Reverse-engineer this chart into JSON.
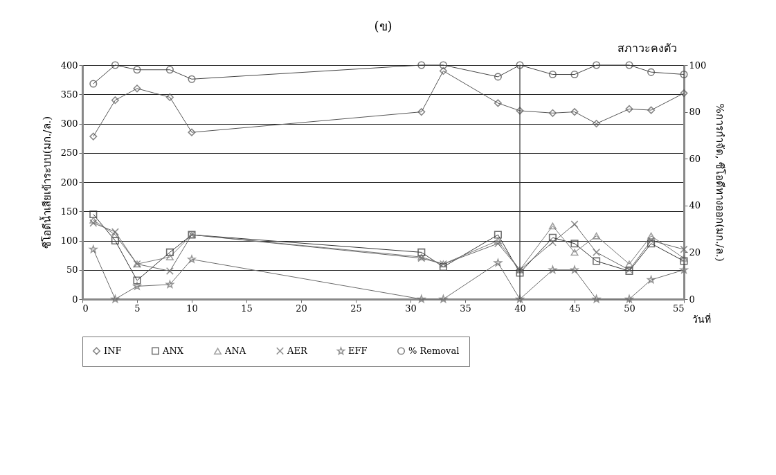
{
  "chart_data": {
    "type": "line",
    "title": "(ข)",
    "xlabel": "วันที่",
    "ylabel": "ซีโอดีน้ำเสียเข้าระบบ(มก./ล.)",
    "y2label": "%การกำจัด, ซีโอดีทางออก(มก./ล.)",
    "annotations": [
      "สภาวะคงตัว"
    ],
    "x": [
      1,
      3,
      5,
      8,
      10,
      31,
      33,
      38,
      40,
      43,
      45,
      47,
      50,
      52,
      55
    ],
    "series": [
      {
        "name": "INF",
        "color": "#555555",
        "marker": "diamond",
        "values": [
          278,
          340,
          360,
          345,
          285,
          320,
          390,
          335,
          322,
          318,
          320,
          300,
          325,
          323,
          352
        ]
      },
      {
        "name": "ANX",
        "color": "#333333",
        "marker": "square",
        "values": [
          145,
          100,
          32,
          80,
          110,
          80,
          55,
          110,
          45,
          105,
          95,
          65,
          48,
          95,
          65
        ]
      },
      {
        "name": "ANA",
        "color": "#777777",
        "marker": "triangle",
        "values": [
          135,
          110,
          60,
          72,
          110,
          72,
          60,
          100,
          50,
          125,
          80,
          108,
          60,
          108,
          70
        ]
      },
      {
        "name": "AER",
        "color": "#666666",
        "marker": "cross",
        "values": [
          130,
          115,
          60,
          48,
          110,
          70,
          60,
          95,
          50,
          97,
          128,
          80,
          50,
          100,
          85
        ]
      },
      {
        "name": "EFF",
        "color": "#6a6a6a",
        "marker": "star",
        "values": [
          85,
          0,
          22,
          25,
          68,
          0,
          0,
          62,
          0,
          50,
          50,
          0,
          0,
          33,
          50
        ]
      },
      {
        "name": "% Removal",
        "color": "#444444",
        "marker": "circle",
        "axis": "y2",
        "values": [
          92,
          100,
          98,
          98,
          94,
          100,
          100,
          95,
          100,
          96,
          96,
          100,
          100,
          97,
          96
        ]
      }
    ],
    "xlim": [
      0,
      55
    ],
    "xticks": [
      0,
      5,
      10,
      15,
      20,
      25,
      30,
      35,
      40,
      45,
      50,
      55
    ],
    "ylim": [
      0,
      400
    ],
    "yticks": [
      0,
      50,
      100,
      150,
      200,
      250,
      300,
      350,
      400
    ],
    "y2lim": [
      0,
      100
    ],
    "y2ticks": [
      0,
      20,
      40,
      60,
      80,
      100
    ],
    "ref_lines": [
      {
        "axis": "x",
        "value": 40,
        "color": "#333333"
      }
    ],
    "grid": "y",
    "legend": "bottom"
  }
}
